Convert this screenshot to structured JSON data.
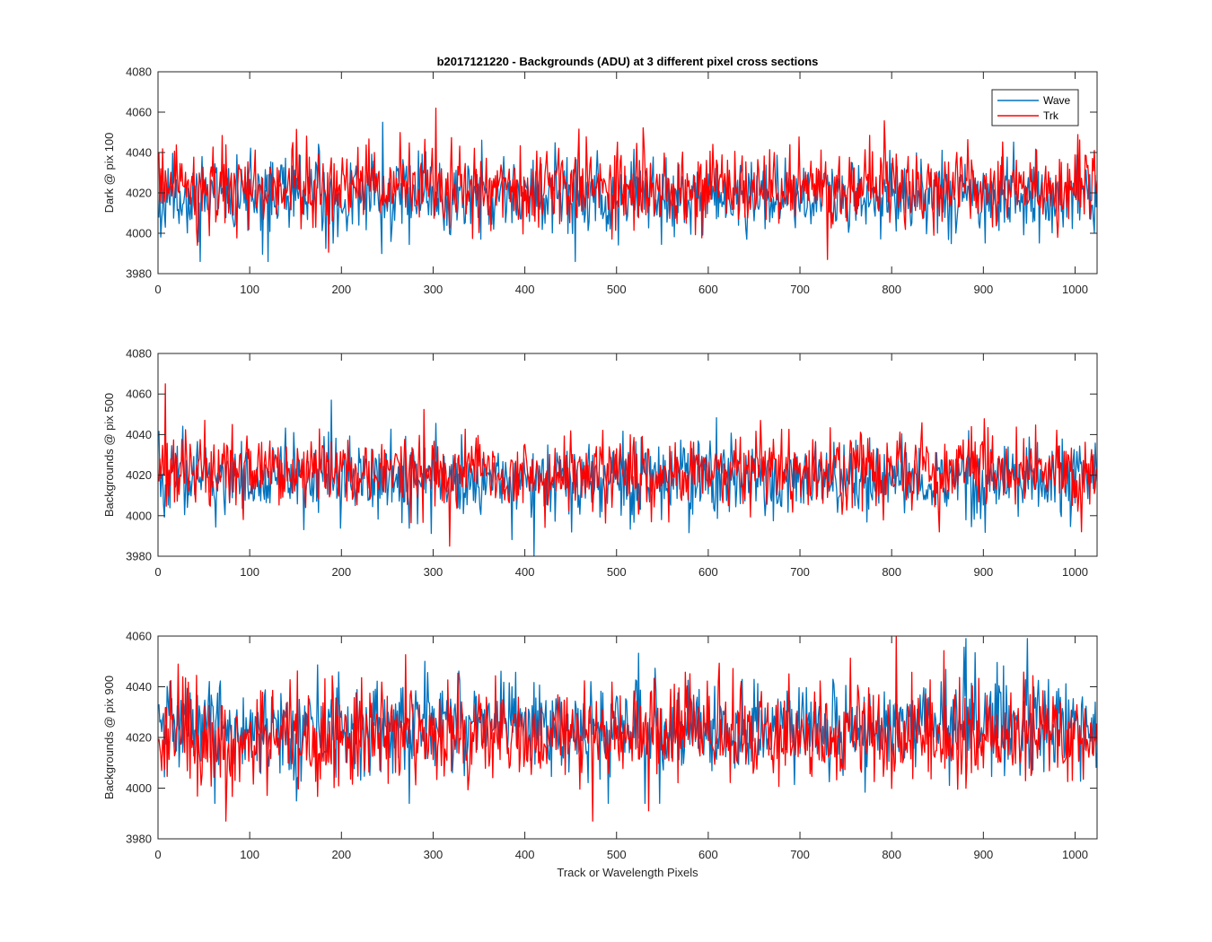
{
  "chart_data": [
    {
      "type": "line",
      "title": "b2017121220 - Backgrounds (ADU) at 3 different pixel cross sections",
      "xlabel": "",
      "ylabel": "Dark @ pix 100",
      "xlim": [
        0,
        1024
      ],
      "ylim": [
        3980,
        4080
      ],
      "xticks": [
        0,
        100,
        200,
        300,
        400,
        500,
        600,
        700,
        800,
        900,
        1000
      ],
      "yticks": [
        3980,
        4000,
        4020,
        4040,
        4060,
        4080
      ],
      "legend": {
        "location": "top-right",
        "entries": [
          "Wave",
          "Trk"
        ]
      },
      "series": [
        {
          "name": "Wave",
          "color": "#0072BD",
          "n_points": 1024,
          "mean": 4018,
          "std": 9,
          "min": 3986,
          "max": 4055,
          "seed": 11
        },
        {
          "name": "Trk",
          "color": "#FF0000",
          "n_points": 1024,
          "mean": 4022,
          "std": 9,
          "min": 3987,
          "max": 4062,
          "seed": 23
        }
      ]
    },
    {
      "type": "line",
      "title": "",
      "xlabel": "",
      "ylabel": "Backgrounds @ pix 500",
      "xlim": [
        0,
        1024
      ],
      "ylim": [
        3980,
        4080
      ],
      "xticks": [
        0,
        100,
        200,
        300,
        400,
        500,
        600,
        700,
        800,
        900,
        1000
      ],
      "yticks": [
        3980,
        4000,
        4020,
        4040,
        4060,
        4080
      ],
      "series": [
        {
          "name": "Wave",
          "color": "#0072BD",
          "n_points": 1024,
          "mean": 4018,
          "std": 9,
          "min": 3980,
          "max": 4057,
          "seed": 37
        },
        {
          "name": "Trk",
          "color": "#FF0000",
          "n_points": 1024,
          "mean": 4022,
          "std": 9,
          "min": 3985,
          "max": 4065,
          "seed": 41
        }
      ]
    },
    {
      "type": "line",
      "title": "",
      "xlabel": "Track or Wavelength Pixels",
      "ylabel": "Backgrounds @ pix 900",
      "xlim": [
        0,
        1024
      ],
      "ylim": [
        3980,
        4060
      ],
      "xticks": [
        0,
        100,
        200,
        300,
        400,
        500,
        600,
        700,
        800,
        900,
        1000
      ],
      "yticks": [
        3980,
        4000,
        4020,
        4040,
        4060
      ],
      "series": [
        {
          "name": "Wave",
          "color": "#0072BD",
          "n_points": 1024,
          "mean": 4024,
          "std": 9,
          "min": 3994,
          "max": 4059,
          "seed": 53
        },
        {
          "name": "Trk",
          "color": "#FF0000",
          "n_points": 1024,
          "mean": 4021,
          "std": 9,
          "min": 3987,
          "max": 4060,
          "seed": 67
        }
      ]
    }
  ]
}
